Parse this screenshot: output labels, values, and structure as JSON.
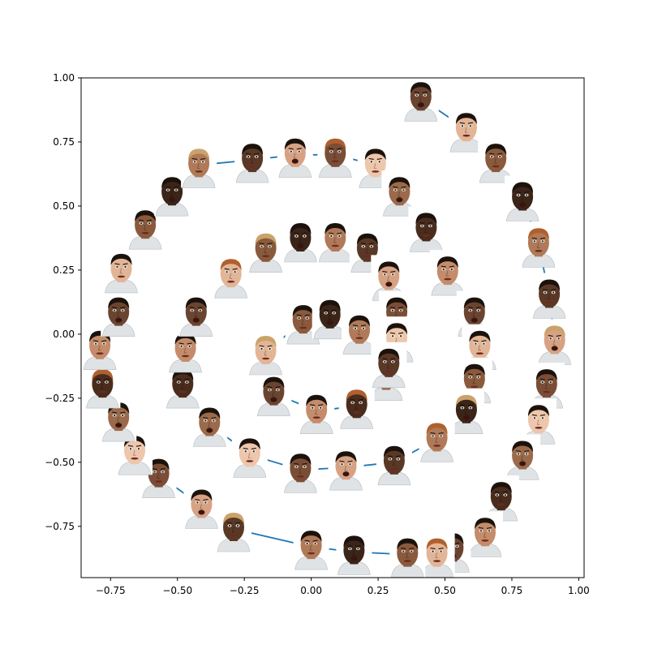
{
  "chart_data": {
    "type": "scatter",
    "title": "",
    "xlabel": "",
    "ylabel": "",
    "xlim": [
      -0.86,
      1.02
    ],
    "ylim": [
      -0.95,
      1.0
    ],
    "xticks": [
      -0.75,
      -0.5,
      -0.25,
      0.0,
      0.25,
      0.5,
      0.75,
      1.0
    ],
    "xtick_labels": [
      "−0.75",
      "−0.50",
      "−0.25",
      "0.00",
      "0.25",
      "0.50",
      "0.75",
      "1.00"
    ],
    "yticks": [
      -0.75,
      -0.5,
      -0.25,
      0.0,
      0.25,
      0.5,
      0.75,
      1.0
    ],
    "ytick_labels": [
      "−0.75",
      "−0.50",
      "−0.25",
      "0.00",
      "0.25",
      "0.50",
      "0.75",
      "1.00"
    ],
    "grid": false,
    "line_color": "#1f77b4",
    "marker": "face-thumbnail",
    "series": [
      {
        "x": [
          0.41,
          0.58,
          0.69,
          0.79,
          0.85,
          0.89,
          0.91,
          0.88,
          0.85,
          0.79,
          0.71,
          0.65,
          0.53,
          0.47,
          0.36,
          0.16,
          0.0,
          -0.29,
          -0.41,
          -0.57,
          -0.66,
          -0.72,
          -0.78,
          -0.79,
          -0.72,
          -0.71,
          -0.62,
          -0.52,
          -0.42,
          -0.22,
          -0.06,
          0.09,
          0.24,
          0.33,
          0.43,
          0.51,
          0.61,
          0.63,
          0.61,
          0.58,
          0.47,
          0.31,
          0.13,
          -0.04,
          -0.23,
          -0.38,
          -0.48,
          -0.47,
          -0.43,
          -0.3,
          -0.17,
          -0.04,
          0.09,
          0.21,
          0.29,
          0.32,
          0.32,
          0.28,
          0.17,
          0.02,
          -0.14,
          -0.17,
          -0.03,
          0.07,
          0.18,
          0.29
        ],
        "y": [
          0.92,
          0.8,
          0.68,
          0.53,
          0.35,
          0.15,
          -0.03,
          -0.2,
          -0.34,
          -0.48,
          -0.64,
          -0.78,
          -0.84,
          -0.86,
          -0.86,
          -0.85,
          -0.83,
          -0.76,
          -0.67,
          -0.55,
          -0.46,
          -0.33,
          -0.2,
          -0.05,
          0.08,
          0.25,
          0.42,
          0.55,
          0.66,
          0.68,
          0.7,
          0.7,
          0.66,
          0.55,
          0.41,
          0.24,
          0.08,
          -0.05,
          -0.18,
          -0.3,
          -0.41,
          -0.5,
          -0.52,
          -0.53,
          -0.47,
          -0.35,
          -0.2,
          -0.06,
          0.08,
          0.23,
          0.33,
          0.37,
          0.37,
          0.33,
          0.22,
          0.08,
          -0.02,
          -0.17,
          -0.28,
          -0.3,
          -0.23,
          -0.07,
          0.05,
          0.07,
          0.01,
          -0.12
        ]
      }
    ],
    "skin_colors": [
      "#3b2418",
      "#4a2c1d",
      "#5a3826",
      "#6b4430",
      "#7a4e36",
      "#8a5a3c",
      "#9b6a4a",
      "#b07a58",
      "#c48c6a",
      "#d7a283",
      "#e2b596",
      "#edc6ab"
    ]
  }
}
